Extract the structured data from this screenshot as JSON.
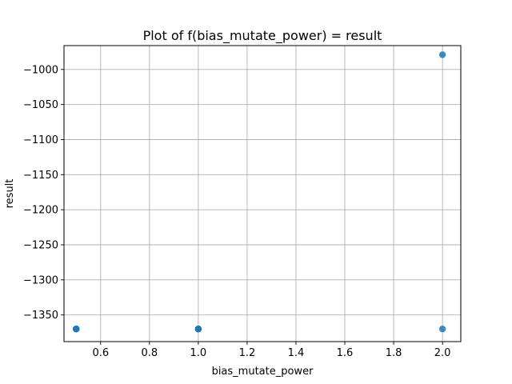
{
  "chart_data": {
    "type": "scatter",
    "title": "Plot of f(bias_mutate_power) = result",
    "xlabel": "bias_mutate_power",
    "ylabel": "result",
    "xlim": [
      0.45,
      2.075
    ],
    "ylim": [
      -1388,
      -966
    ],
    "xticks": [
      0.6,
      0.8,
      1.0,
      1.2,
      1.4,
      1.6,
      1.8,
      2.0
    ],
    "xtick_labels": [
      "0.6",
      "0.8",
      "1.0",
      "1.2",
      "1.4",
      "1.6",
      "1.8",
      "2.0"
    ],
    "yticks": [
      -1350,
      -1300,
      -1250,
      -1200,
      -1150,
      -1100,
      -1050,
      -1000
    ],
    "ytick_labels": [
      "−1350",
      "−1300",
      "−1250",
      "−1200",
      "−1150",
      "−1100",
      "−1050",
      "−1000"
    ],
    "grid": true,
    "marker_color": "#1f77b4",
    "points": [
      {
        "x": 0.5,
        "y": -1370
      },
      {
        "x": 0.5,
        "y": -1370
      },
      {
        "x": 0.5,
        "y": -1370
      },
      {
        "x": 1.0,
        "y": -1370
      },
      {
        "x": 1.0,
        "y": -1370
      },
      {
        "x": 1.0,
        "y": -1370
      },
      {
        "x": 2.0,
        "y": -1370
      },
      {
        "x": 2.0,
        "y": -979
      }
    ]
  }
}
